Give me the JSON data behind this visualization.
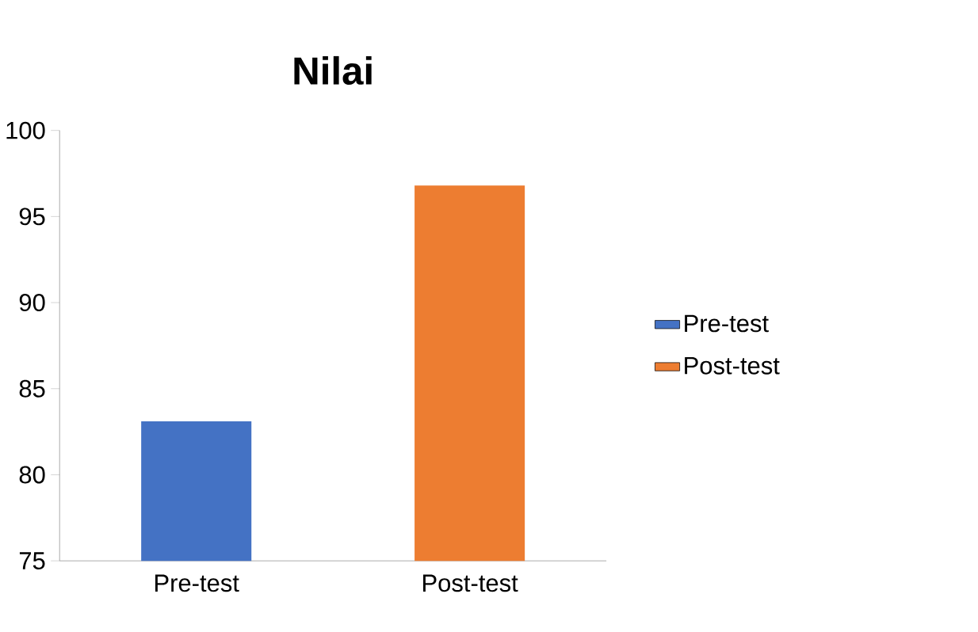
{
  "chart_data": {
    "type": "bar",
    "title": "Nilai",
    "categories": [
      "Pre-test",
      "Post-test"
    ],
    "series": [
      {
        "name": "Pre-test",
        "color": "#4472c4",
        "values": [
          83.1,
          null
        ]
      },
      {
        "name": "Post-test",
        "color": "#ed7d31",
        "values": [
          null,
          96.8
        ]
      }
    ],
    "ylim": [
      75,
      100
    ],
    "yticks": [
      75,
      80,
      85,
      90,
      95,
      100
    ],
    "legend": "right"
  }
}
